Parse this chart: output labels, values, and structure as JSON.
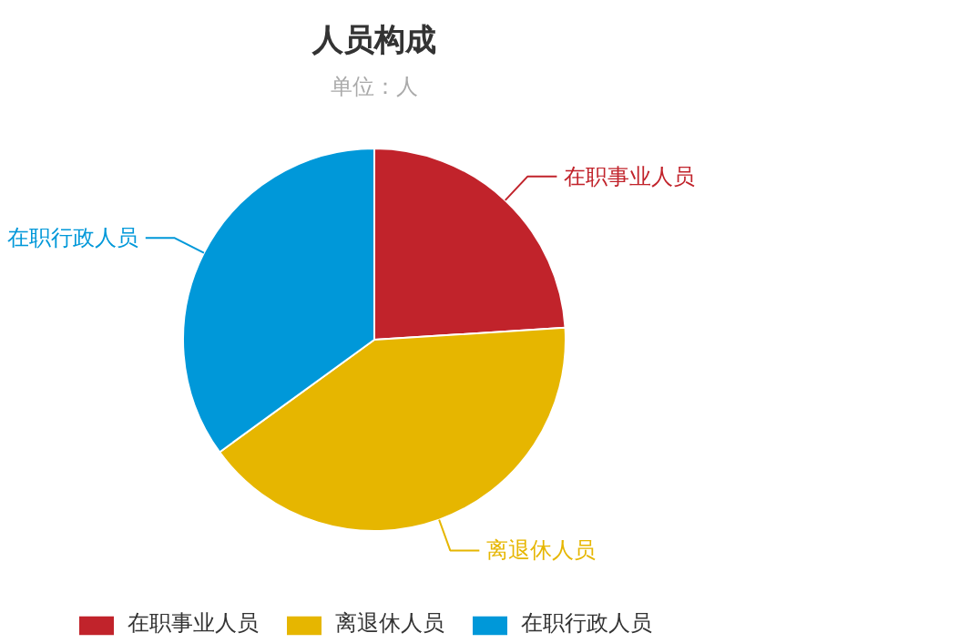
{
  "chart_data": {
    "type": "pie",
    "title": "人员构成",
    "subtitle": "单位：人",
    "categories": [
      "在职事业人员",
      "离退休人员",
      "在职行政人员"
    ],
    "values": [
      24,
      41,
      35
    ],
    "colors": [
      "#c1232b",
      "#e6b600",
      "#0098d9"
    ],
    "legend": "bottom"
  }
}
